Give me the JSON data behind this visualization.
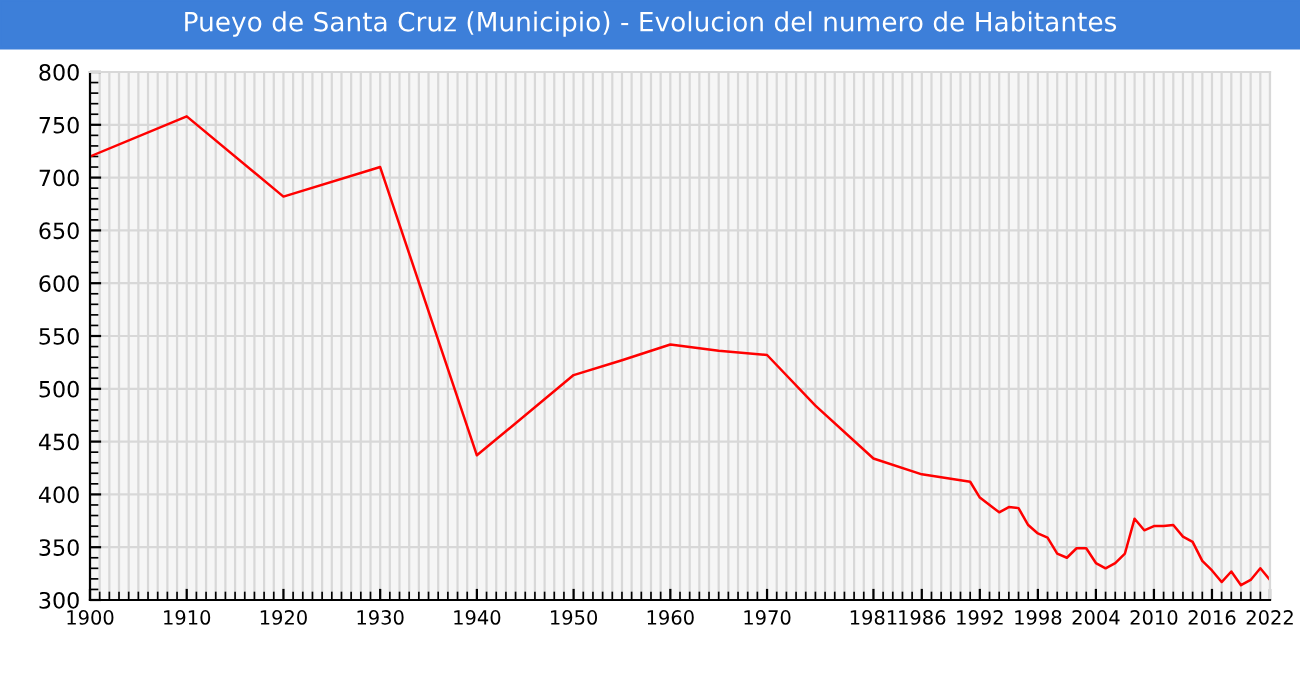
{
  "chart_data": {
    "type": "line",
    "title": "Pueyo de Santa Cruz (Municipio) - Evolucion del numero de Habitantes",
    "x": [
      1900,
      1910,
      1920,
      1930,
      1940,
      1950,
      1955,
      1960,
      1965,
      1970,
      1975,
      1981,
      1986,
      1991,
      1992,
      1994,
      1995,
      1996,
      1997,
      1998,
      1999,
      2000,
      2001,
      2002,
      2003,
      2004,
      2005,
      2006,
      2007,
      2008,
      2009,
      2010,
      2011,
      2012,
      2013,
      2014,
      2015,
      2016,
      2017,
      2018,
      2019,
      2020,
      2021,
      2022
    ],
    "series": [
      {
        "color": "#ff0000",
        "values": [
          720,
          758,
          682,
          710,
          437,
          513,
          527,
          542,
          536,
          532,
          484,
          434,
          419,
          412,
          397,
          383,
          388,
          387,
          371,
          363,
          359,
          344,
          340,
          349,
          349,
          335,
          330,
          335,
          344,
          377,
          366,
          370,
          370,
          371,
          360,
          355,
          337,
          328,
          317,
          327,
          314,
          319,
          330,
          319
        ]
      }
    ],
    "xlim": [
      1900,
      2022
    ],
    "xticks": [
      1900,
      1910,
      1920,
      1930,
      1940,
      1950,
      1960,
      1970,
      1981,
      1986,
      1992,
      1998,
      2004,
      2010,
      2016,
      2022
    ],
    "ylim": [
      300,
      800
    ],
    "yticks": [
      300,
      350,
      400,
      450,
      500,
      550,
      600,
      650,
      700,
      750,
      800
    ],
    "grid": true,
    "marker": "none",
    "line_style": "solid"
  }
}
